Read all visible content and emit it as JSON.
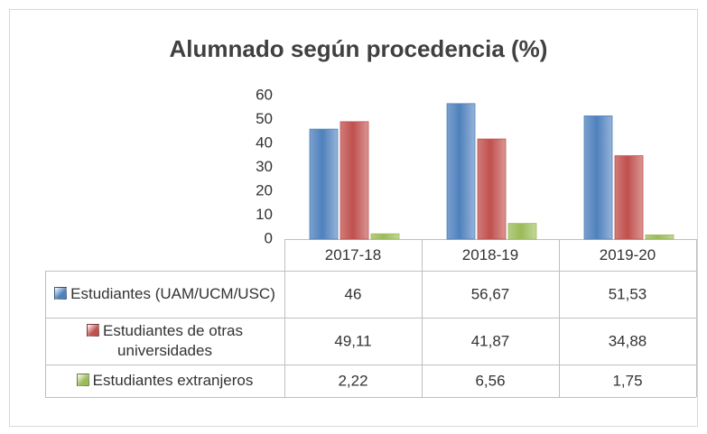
{
  "chart_data": {
    "type": "bar",
    "title": "Alumnado según procedencia (%)",
    "categories": [
      "2017-18",
      "2018-19",
      "2019-20"
    ],
    "series": [
      {
        "name": "Estudiantes (UAM/UCM/USC)",
        "color": "#4f81bd",
        "values": [
          46,
          56.67,
          51.53
        ],
        "value_labels": [
          "46",
          "56,67",
          "51,53"
        ]
      },
      {
        "name": "Estudiantes de otras universidades",
        "color": "#c0504d",
        "values": [
          49.11,
          41.87,
          34.88
        ],
        "value_labels": [
          "49,11",
          "41,87",
          "34,88"
        ]
      },
      {
        "name": "Estudiantes extranjeros",
        "color": "#9bbb59",
        "values": [
          2.22,
          6.56,
          1.75
        ],
        "value_labels": [
          "2,22",
          "6,56",
          "1,75"
        ]
      }
    ],
    "ylim": [
      0,
      60
    ],
    "yticks": [
      0,
      10,
      20,
      30,
      40,
      50,
      60
    ]
  }
}
